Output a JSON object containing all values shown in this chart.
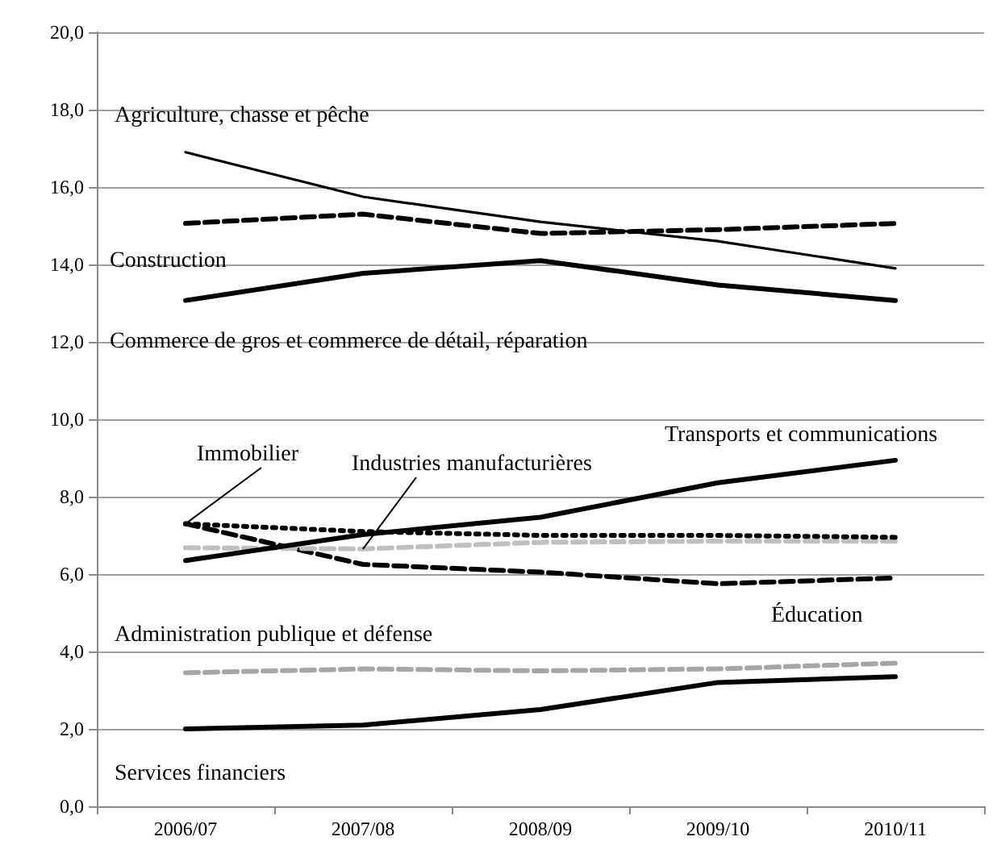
{
  "chart_data": {
    "type": "line",
    "categories": [
      "2006/07",
      "2007/08",
      "2008/09",
      "2009/10",
      "2010/11"
    ],
    "series": [
      {
        "name": "Agriculture, chasse et pêche",
        "color": "#000000",
        "line_style": "solid",
        "values": [
          16.9,
          15.75,
          15.1,
          14.6,
          13.9
        ]
      },
      {
        "name": "Construction",
        "color": "#000000",
        "line_style": "dashed",
        "values": [
          15.06,
          15.3,
          14.8,
          14.9,
          15.06
        ]
      },
      {
        "name": "Commerce de gros et commerce de détail, réparation",
        "color": "#000000",
        "line_style": "solid",
        "values": [
          13.07,
          13.77,
          14.1,
          13.47,
          13.07
        ]
      },
      {
        "name": "Transports et communications",
        "color": "#000000",
        "line_style": "solid",
        "values": [
          6.35,
          7.02,
          7.47,
          8.36,
          8.94
        ]
      },
      {
        "name": "Immobilier",
        "color": "#000000",
        "line_style": "dotted",
        "values": [
          7.3,
          7.1,
          7.0,
          7.0,
          6.95
        ]
      },
      {
        "name": "Industries manufacturières",
        "color": "#bfbfbf",
        "line_style": "dashed",
        "values": [
          6.68,
          6.65,
          6.82,
          6.85,
          6.85
        ]
      },
      {
        "name": "Éducation",
        "color": "#000000",
        "line_style": "dashed",
        "values": [
          7.3,
          6.25,
          6.05,
          5.75,
          5.9
        ]
      },
      {
        "name": "Administration publique et défense",
        "color": "#a6a6a6",
        "line_style": "dashed",
        "values": [
          3.45,
          3.55,
          3.5,
          3.55,
          3.7
        ]
      },
      {
        "name": "Services financiers",
        "color": "#000000",
        "line_style": "solid",
        "values": [
          2.0,
          2.1,
          2.5,
          3.2,
          3.35
        ]
      }
    ],
    "ylim": [
      0,
      20
    ],
    "yticks": [
      {
        "value": 0,
        "label": "0,0"
      },
      {
        "value": 2,
        "label": "2,0"
      },
      {
        "value": 4,
        "label": "4,0"
      },
      {
        "value": 6,
        "label": "6,0"
      },
      {
        "value": 8,
        "label": "8,0"
      },
      {
        "value": 10,
        "label": "10,0"
      },
      {
        "value": 12,
        "label": "12,0"
      },
      {
        "value": 14,
        "label": "14,0"
      },
      {
        "value": 16,
        "label": "16,0"
      },
      {
        "value": 18,
        "label": "18,0"
      },
      {
        "value": 20,
        "label": "20,0"
      }
    ],
    "grid": "y",
    "legend": false,
    "marker": "none"
  }
}
